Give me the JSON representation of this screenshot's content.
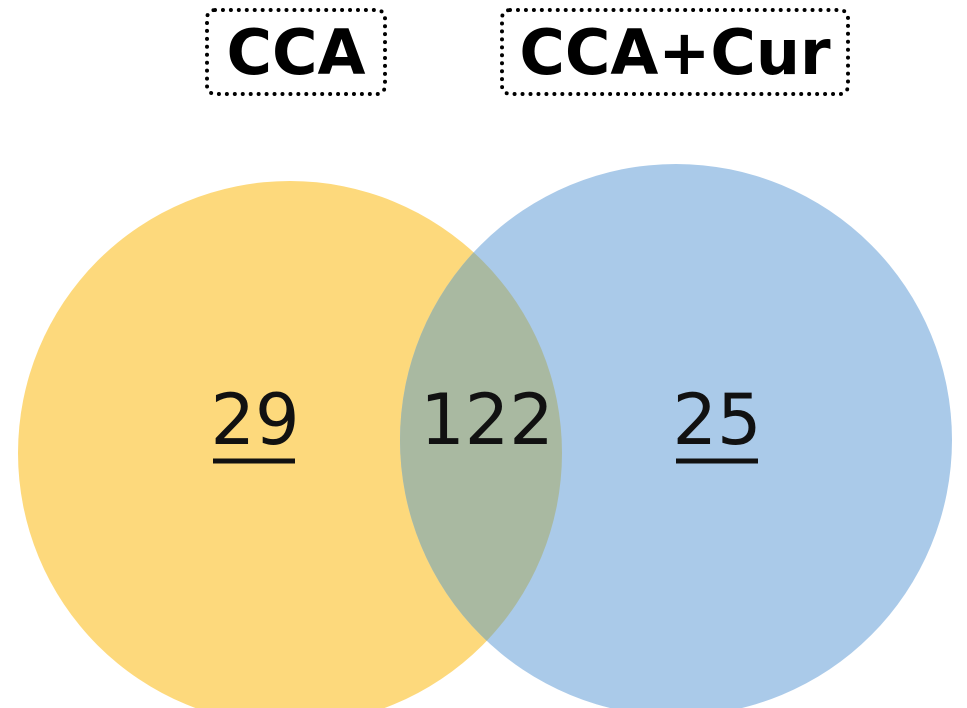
{
  "sets": [
    {
      "label": "CCA"
    },
    {
      "label": "CCA+Cur"
    }
  ],
  "regions": [
    {
      "count": 29
    },
    {
      "count": 122
    },
    {
      "count": 25
    }
  ]
}
